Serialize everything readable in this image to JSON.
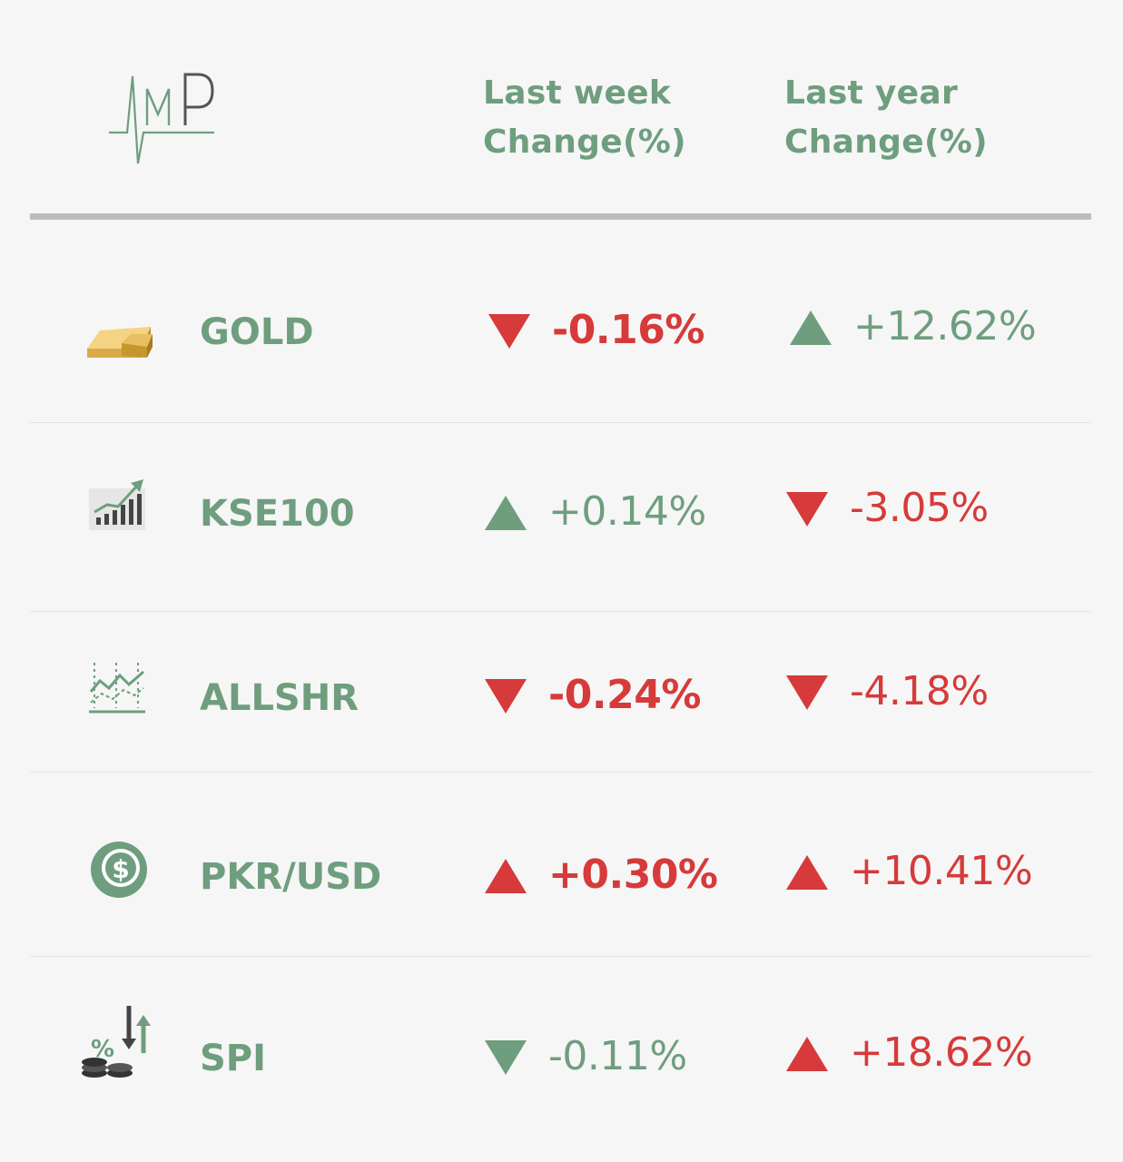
{
  "logo": {
    "text": "MP"
  },
  "header": {
    "last_week": "Last week\nChange(%)",
    "last_year": "Last year\nChange(%)"
  },
  "colors": {
    "green": "#6e9e7e",
    "red": "#d63a3a",
    "divider": "#bdbdbd"
  },
  "rows": [
    {
      "name": "GOLD",
      "icon": "gold-bars-icon",
      "week": {
        "value": "-0.16%",
        "direction": "down",
        "color": "red"
      },
      "year": {
        "value": "+12.62%",
        "direction": "up",
        "color": "green"
      }
    },
    {
      "name": "KSE100",
      "icon": "rising-bar-chart-icon",
      "week": {
        "value": "+0.14%",
        "direction": "up",
        "color": "green"
      },
      "year": {
        "value": "-3.05%",
        "direction": "down",
        "color": "red"
      }
    },
    {
      "name": "ALLSHR",
      "icon": "line-chart-icon",
      "week": {
        "value": "-0.24%",
        "direction": "down",
        "color": "red"
      },
      "year": {
        "value": "-4.18%",
        "direction": "down",
        "color": "red"
      }
    },
    {
      "name": "PKR/USD",
      "icon": "dollar-coin-icon",
      "week": {
        "value": "+0.30%",
        "direction": "up",
        "color": "red"
      },
      "year": {
        "value": "+10.41%",
        "direction": "up",
        "color": "red"
      }
    },
    {
      "name": "SPI",
      "icon": "coins-percent-arrows-icon",
      "week": {
        "value": "-0.11%",
        "direction": "down",
        "color": "green"
      },
      "year": {
        "value": "+18.62%",
        "direction": "up",
        "color": "red"
      }
    }
  ]
}
